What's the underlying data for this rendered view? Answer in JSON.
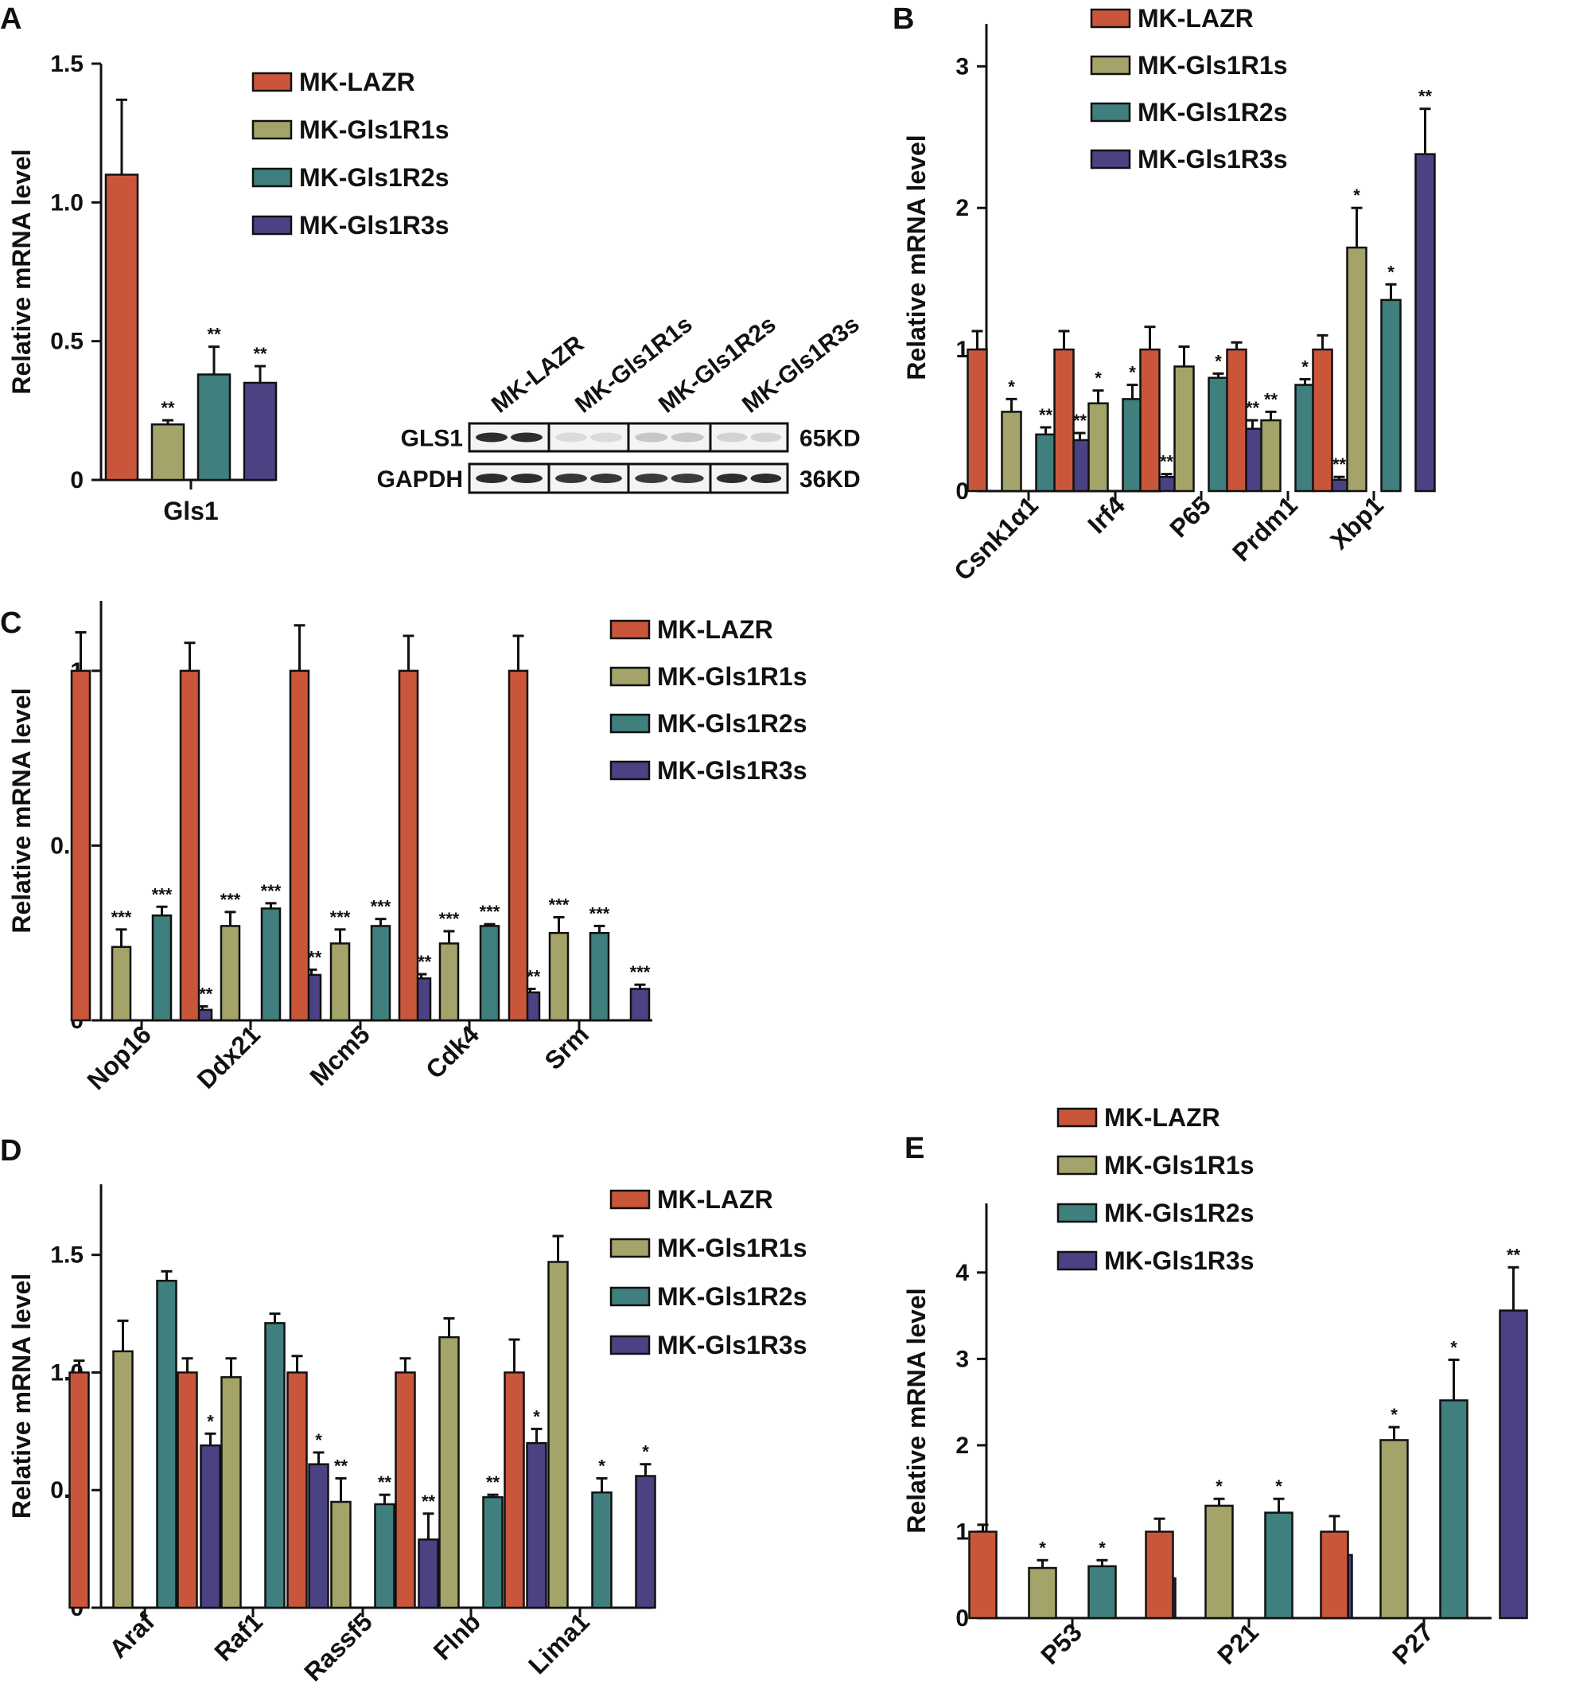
{
  "colors": {
    "MK-LAZR": "#c9563b",
    "MK-Gls1R1s": "#a3a36a",
    "MK-Gls1R2s": "#3f7f7d",
    "MK-Gls1R3s": "#4a4282",
    "axis": "#111111"
  },
  "icons": {
    "panel_type": "grouped-bar-with-error-bars",
    "blot": "western-blot-bands"
  },
  "western_blot": {
    "lanes": [
      "MK-LAZR",
      "MK-Gls1R1s",
      "MK-Gls1R2s",
      "MK-Gls1R3s"
    ],
    "rows": [
      {
        "protein": "GLS1",
        "size": "65KD",
        "intensity": [
          0.95,
          0.08,
          0.18,
          0.12
        ]
      },
      {
        "protein": "GAPDH",
        "size": "36KD",
        "intensity": [
          0.95,
          0.9,
          0.88,
          0.95
        ]
      }
    ]
  },
  "chart_data": [
    {
      "panel": "A",
      "type": "bar",
      "ylabel": "Relative mRNA level",
      "ylim": [
        0,
        1.5
      ],
      "yticks": [
        "0",
        "0.5",
        "1.0",
        "1.5"
      ],
      "categories": [
        "Gls1"
      ],
      "series": [
        {
          "name": "MK-LAZR",
          "values": [
            1.1
          ],
          "errors": [
            0.27
          ],
          "sig": [
            ""
          ]
        },
        {
          "name": "MK-Gls1R1s",
          "values": [
            0.2
          ],
          "errors": [
            0.015
          ],
          "sig": [
            "**"
          ]
        },
        {
          "name": "MK-Gls1R2s",
          "values": [
            0.38
          ],
          "errors": [
            0.1
          ],
          "sig": [
            "**"
          ]
        },
        {
          "name": "MK-Gls1R3s",
          "values": [
            0.35
          ],
          "errors": [
            0.06
          ],
          "sig": [
            "**"
          ]
        }
      ],
      "legend": "top-right",
      "grid": false
    },
    {
      "panel": "B",
      "type": "bar",
      "ylabel": "Relative mRNA level",
      "ylim": [
        0,
        3.3
      ],
      "yticks": [
        "0",
        "1",
        "2",
        "3"
      ],
      "categories": [
        "Csnk1α1",
        "Irf4",
        "P65",
        "Prdm1",
        "Xbp1"
      ],
      "series": [
        {
          "name": "MK-LAZR",
          "values": [
            1.0,
            1.0,
            1.0,
            1.0,
            1.0
          ],
          "errors": [
            0.13,
            0.13,
            0.16,
            0.05,
            0.1
          ],
          "sig": [
            "",
            "",
            "",
            "",
            ""
          ]
        },
        {
          "name": "MK-Gls1R1s",
          "values": [
            0.56,
            0.62,
            0.88,
            0.5,
            1.72
          ],
          "errors": [
            0.09,
            0.09,
            0.14,
            0.06,
            0.28
          ],
          "sig": [
            "*",
            "*",
            "",
            "**",
            "*"
          ]
        },
        {
          "name": "MK-Gls1R2s",
          "values": [
            0.4,
            0.65,
            0.8,
            0.75,
            1.35
          ],
          "errors": [
            0.05,
            0.1,
            0.03,
            0.04,
            0.11
          ],
          "sig": [
            "**",
            "*",
            "*",
            "*",
            "*"
          ]
        },
        {
          "name": "MK-Gls1R3s",
          "values": [
            0.36,
            0.1,
            0.44,
            0.08,
            2.38
          ],
          "errors": [
            0.05,
            0.02,
            0.06,
            0.02,
            0.32
          ],
          "sig": [
            "**",
            "**",
            "**",
            "**",
            "**"
          ]
        }
      ],
      "legend": "top",
      "grid": false
    },
    {
      "panel": "C",
      "type": "bar",
      "ylabel": "Relative mRNA level",
      "ylim": [
        0,
        1.2
      ],
      "yticks": [
        "0",
        "0.5",
        "1"
      ],
      "categories": [
        "Nop16",
        "Ddx21",
        "Mcm5",
        "Cdk4",
        "Srm"
      ],
      "series": [
        {
          "name": "MK-LAZR",
          "values": [
            1.0,
            1.0,
            1.0,
            1.0,
            1.0
          ],
          "errors": [
            0.11,
            0.08,
            0.13,
            0.1,
            0.1
          ],
          "sig": [
            "",
            "",
            "",
            "",
            ""
          ]
        },
        {
          "name": "MK-Gls1R1s",
          "values": [
            0.21,
            0.27,
            0.22,
            0.22,
            0.25
          ],
          "errors": [
            0.05,
            0.04,
            0.04,
            0.035,
            0.045
          ],
          "sig": [
            "***",
            "***",
            "***",
            "***",
            "***"
          ]
        },
        {
          "name": "MK-Gls1R2s",
          "values": [
            0.3,
            0.32,
            0.27,
            0.27,
            0.25
          ],
          "errors": [
            0.025,
            0.015,
            0.02,
            0.005,
            0.02
          ],
          "sig": [
            "***",
            "***",
            "***",
            "***",
            "***"
          ]
        },
        {
          "name": "MK-Gls1R3s",
          "values": [
            0.03,
            0.13,
            0.12,
            0.08,
            0.09
          ],
          "errors": [
            0.01,
            0.015,
            0.012,
            0.01,
            0.012
          ],
          "sig": [
            "***",
            "***",
            "***",
            "***",
            "***"
          ]
        }
      ],
      "legend": "top-right",
      "grid": false
    },
    {
      "panel": "D",
      "type": "bar",
      "ylabel": "Relative mRNA level",
      "ylim": [
        0,
        1.8
      ],
      "yticks": [
        "0",
        "0.5",
        "1.0",
        "1.5"
      ],
      "categories": [
        "Araf",
        "Raf1",
        "Rassf5",
        "Flnb",
        "Lima1"
      ],
      "series": [
        {
          "name": "MK-LAZR",
          "values": [
            1.0,
            1.0,
            1.0,
            1.0,
            1.0
          ],
          "errors": [
            0.05,
            0.06,
            0.07,
            0.06,
            0.14
          ],
          "sig": [
            "",
            "",
            "",
            "",
            ""
          ]
        },
        {
          "name": "MK-Gls1R1s",
          "values": [
            1.09,
            0.98,
            0.45,
            1.15,
            1.47
          ],
          "errors": [
            0.13,
            0.08,
            0.1,
            0.08,
            0.11
          ],
          "sig": [
            "",
            "",
            "**",
            "",
            ""
          ]
        },
        {
          "name": "MK-Gls1R2s",
          "values": [
            1.39,
            1.21,
            0.44,
            0.47,
            0.49
          ],
          "errors": [
            0.04,
            0.04,
            0.04,
            0.01,
            0.06
          ],
          "sig": [
            "",
            "",
            "**",
            "**",
            "*"
          ]
        },
        {
          "name": "MK-Gls1R3s",
          "values": [
            0.69,
            0.61,
            0.29,
            0.7,
            0.56
          ],
          "errors": [
            0.05,
            0.05,
            0.11,
            0.06,
            0.05
          ],
          "sig": [
            "*",
            "*",
            "**",
            "*",
            "*"
          ]
        }
      ],
      "legend": "top-right",
      "grid": false
    },
    {
      "panel": "E",
      "type": "bar",
      "ylabel": "Relative mRNA level",
      "ylim": [
        0,
        4.8
      ],
      "yticks": [
        "0",
        "1",
        "2",
        "3",
        "4"
      ],
      "categories": [
        "P53",
        "P21",
        "P27"
      ],
      "series": [
        {
          "name": "MK-LAZR",
          "values": [
            1.0,
            1.0,
            1.0
          ],
          "errors": [
            0.08,
            0.15,
            0.18
          ],
          "sig": [
            "",
            "",
            ""
          ]
        },
        {
          "name": "MK-Gls1R1s",
          "values": [
            0.58,
            1.3,
            2.06
          ],
          "errors": [
            0.09,
            0.08,
            0.15
          ],
          "sig": [
            "*",
            "*",
            "*"
          ]
        },
        {
          "name": "MK-Gls1R2s",
          "values": [
            0.6,
            1.22,
            2.52
          ],
          "errors": [
            0.07,
            0.16,
            0.47
          ],
          "sig": [
            "*",
            "*",
            "*"
          ]
        },
        {
          "name": "MK-Gls1R3s",
          "values": [
            0.46,
            0.73,
            3.56
          ],
          "errors": [
            0.06,
            0.03,
            0.5
          ],
          "sig": [
            "**",
            "",
            "**"
          ]
        }
      ],
      "legend": "top",
      "grid": false
    }
  ]
}
